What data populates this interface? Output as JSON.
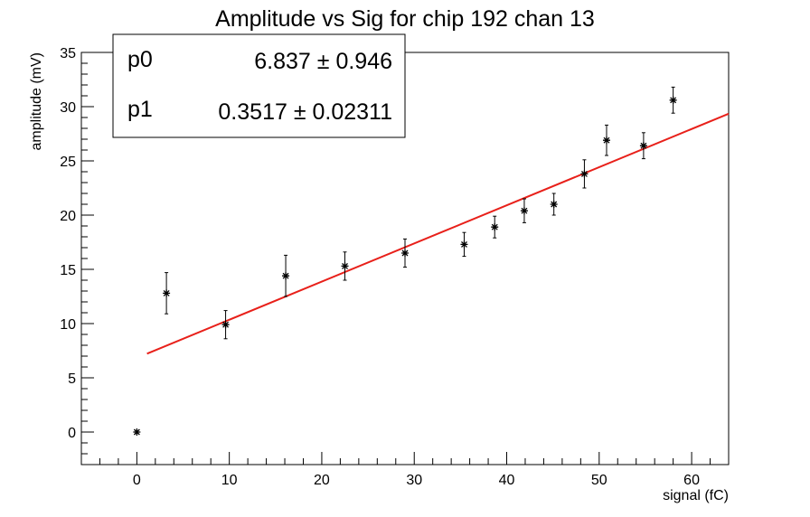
{
  "chart_data": {
    "type": "scatter",
    "title": "Amplitude vs Sig for chip 192 chan 13",
    "xlabel": "signal (fC)",
    "ylabel": "amplitude (mV)",
    "xlim": [
      -6,
      64
    ],
    "ylim": [
      -3,
      35
    ],
    "xticks": [
      0,
      10,
      20,
      30,
      40,
      50,
      60
    ],
    "yticks": [
      0,
      5,
      10,
      15,
      20,
      25,
      30,
      35
    ],
    "grid": false,
    "points": [
      {
        "x": 0,
        "y": 0,
        "err": 0
      },
      {
        "x": 3.2,
        "y": 12.8,
        "err": 1.9
      },
      {
        "x": 9.6,
        "y": 9.9,
        "err": 1.3
      },
      {
        "x": 16.1,
        "y": 14.4,
        "err": 1.9
      },
      {
        "x": 22.5,
        "y": 15.3,
        "err": 1.3
      },
      {
        "x": 29.0,
        "y": 16.5,
        "err": 1.3
      },
      {
        "x": 35.4,
        "y": 17.3,
        "err": 1.1
      },
      {
        "x": 38.7,
        "y": 18.9,
        "err": 1.0
      },
      {
        "x": 41.9,
        "y": 20.4,
        "err": 1.1
      },
      {
        "x": 45.1,
        "y": 21.0,
        "err": 1.0
      },
      {
        "x": 48.4,
        "y": 23.8,
        "err": 1.3
      },
      {
        "x": 50.8,
        "y": 26.9,
        "err": 1.4
      },
      {
        "x": 54.8,
        "y": 26.4,
        "err": 1.2
      },
      {
        "x": 58.0,
        "y": 30.6,
        "err": 1.2
      }
    ],
    "fit": {
      "color": "#e8201a",
      "p0": 6.837,
      "p1": 0.3517,
      "x_range": [
        1.1,
        64
      ]
    },
    "stats": {
      "rows": [
        {
          "name": "p0",
          "value": "6.837 ± 0.946"
        },
        {
          "name": "p1",
          "value": "0.3517 ± 0.02311"
        }
      ],
      "placement": "top-left"
    },
    "marker_color": "#000000"
  }
}
